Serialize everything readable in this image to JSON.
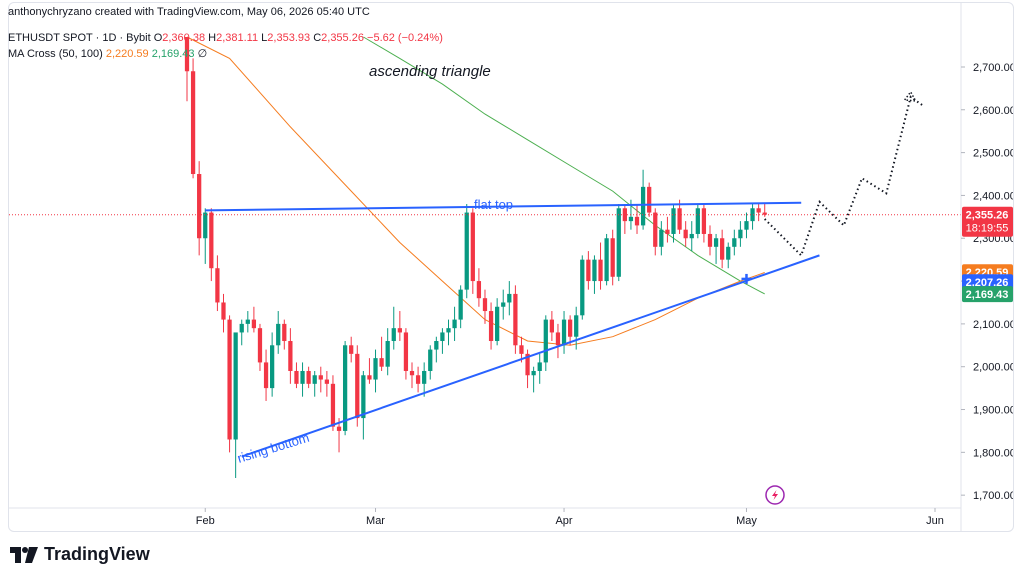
{
  "header": {
    "author_line": "anthonychryzano created with TradingView.com, May 06, 2026 05:40 UTC"
  },
  "legend": {
    "symbol": "ETHUSDT SPOT · 1D · Bybit",
    "open_label": "O",
    "open": "2,360.38",
    "high_label": "H",
    "high": "2,381.11",
    "low_label": "L",
    "low": "2,353.93",
    "close_label": "C",
    "close": "2,355.26",
    "change": "−5.62 (−0.24%)",
    "ma_label": "MA Cross (50, 100)",
    "ma50": "2,220.59",
    "ma100": "2,169.43",
    "ma_extra": "∅"
  },
  "annotations": {
    "ascending_triangle": "ascending triangle",
    "flat_top": "flat top",
    "rising_bottom": "rising bottom"
  },
  "price_badges": {
    "last_price": "2,355.26",
    "countdown": "18:19:55",
    "ma50": "2,220.59",
    "pattern_level": "2,207.26",
    "ma100": "2,169.43"
  },
  "colors": {
    "up": "#089981",
    "down": "#f23645",
    "ma50": "#f57c1f",
    "ma100": "#4caf50",
    "trendline": "#2962ff",
    "badge_blue": "#2962ff",
    "badge_orange": "#f57c1f",
    "badge_green": "#26a26a",
    "badge_red": "#f23645"
  },
  "branding": {
    "logo_text": "TradingView"
  },
  "chart_data": {
    "type": "candlestick",
    "y_axis": {
      "ticks": [
        1700,
        1800,
        1900,
        2000,
        2100,
        2200,
        2300,
        2400,
        2500,
        2600,
        2700
      ],
      "tick_labels": [
        "1,700.00",
        "1,800.00",
        "1,900.00",
        "2,000.00",
        "2,100.00",
        "2,200.00",
        "2,300.00",
        "2,400.00",
        "2,500.00",
        "2,600.00",
        "2,700.00"
      ],
      "ylim": [
        1670,
        2770
      ]
    },
    "x_axis": {
      "start": "2026-01-29",
      "end": "2026-06-01",
      "tick_labels": [
        {
          "date": "2026-02-01",
          "label": "Feb"
        },
        {
          "date": "2026-03-01",
          "label": "Mar"
        },
        {
          "date": "2026-04-01",
          "label": "Apr"
        },
        {
          "date": "2026-05-01",
          "label": "May"
        },
        {
          "date": "2026-06-01",
          "label": "Jun"
        }
      ]
    },
    "candles": [
      {
        "date": "2026-01-29",
        "o": 2770,
        "h": 2770,
        "l": 2620,
        "c": 2690
      },
      {
        "date": "2026-01-30",
        "o": 2690,
        "h": 2720,
        "l": 2440,
        "c": 2450
      },
      {
        "date": "2026-01-31",
        "o": 2450,
        "h": 2480,
        "l": 2260,
        "c": 2300
      },
      {
        "date": "2026-02-01",
        "o": 2300,
        "h": 2370,
        "l": 2240,
        "c": 2360
      },
      {
        "date": "2026-02-02",
        "o": 2360,
        "h": 2370,
        "l": 2200,
        "c": 2230
      },
      {
        "date": "2026-02-03",
        "o": 2230,
        "h": 2260,
        "l": 2130,
        "c": 2150
      },
      {
        "date": "2026-02-04",
        "o": 2150,
        "h": 2170,
        "l": 2080,
        "c": 2110
      },
      {
        "date": "2026-02-05",
        "o": 2110,
        "h": 2120,
        "l": 1800,
        "c": 1830
      },
      {
        "date": "2026-02-06",
        "o": 1830,
        "h": 2080,
        "l": 1740,
        "c": 2080
      },
      {
        "date": "2026-02-07",
        "o": 2080,
        "h": 2110,
        "l": 2050,
        "c": 2100
      },
      {
        "date": "2026-02-08",
        "o": 2100,
        "h": 2130,
        "l": 2080,
        "c": 2110
      },
      {
        "date": "2026-02-09",
        "o": 2110,
        "h": 2140,
        "l": 2080,
        "c": 2090
      },
      {
        "date": "2026-02-10",
        "o": 2090,
        "h": 2100,
        "l": 1990,
        "c": 2010
      },
      {
        "date": "2026-02-11",
        "o": 2010,
        "h": 2040,
        "l": 1920,
        "c": 1950
      },
      {
        "date": "2026-02-12",
        "o": 1950,
        "h": 2080,
        "l": 1930,
        "c": 2050
      },
      {
        "date": "2026-02-13",
        "o": 2050,
        "h": 2130,
        "l": 2030,
        "c": 2100
      },
      {
        "date": "2026-02-14",
        "o": 2100,
        "h": 2110,
        "l": 2040,
        "c": 2060
      },
      {
        "date": "2026-02-15",
        "o": 2060,
        "h": 2090,
        "l": 1960,
        "c": 1990
      },
      {
        "date": "2026-02-16",
        "o": 1990,
        "h": 2010,
        "l": 1950,
        "c": 1960
      },
      {
        "date": "2026-02-17",
        "o": 1960,
        "h": 2010,
        "l": 1930,
        "c": 1990
      },
      {
        "date": "2026-02-18",
        "o": 1990,
        "h": 2000,
        "l": 1950,
        "c": 1960
      },
      {
        "date": "2026-02-19",
        "o": 1960,
        "h": 1990,
        "l": 1930,
        "c": 1980
      },
      {
        "date": "2026-02-20",
        "o": 1980,
        "h": 2000,
        "l": 1940,
        "c": 1970
      },
      {
        "date": "2026-02-21",
        "o": 1970,
        "h": 1990,
        "l": 1930,
        "c": 1960
      },
      {
        "date": "2026-02-22",
        "o": 1960,
        "h": 1980,
        "l": 1850,
        "c": 1860
      },
      {
        "date": "2026-02-23",
        "o": 1860,
        "h": 1880,
        "l": 1800,
        "c": 1850
      },
      {
        "date": "2026-02-24",
        "o": 1850,
        "h": 2060,
        "l": 1840,
        "c": 2050
      },
      {
        "date": "2026-02-25",
        "o": 2050,
        "h": 2070,
        "l": 2010,
        "c": 2030
      },
      {
        "date": "2026-02-26",
        "o": 2030,
        "h": 2050,
        "l": 1860,
        "c": 1880
      },
      {
        "date": "2026-02-27",
        "o": 1880,
        "h": 1990,
        "l": 1830,
        "c": 1980
      },
      {
        "date": "2026-02-28",
        "o": 1980,
        "h": 2020,
        "l": 1960,
        "c": 1970
      },
      {
        "date": "2026-03-01",
        "o": 1970,
        "h": 2040,
        "l": 1940,
        "c": 2020
      },
      {
        "date": "2026-03-02",
        "o": 2020,
        "h": 2070,
        "l": 1990,
        "c": 2000
      },
      {
        "date": "2026-03-03",
        "o": 2000,
        "h": 2090,
        "l": 1980,
        "c": 2060
      },
      {
        "date": "2026-03-04",
        "o": 2060,
        "h": 2140,
        "l": 2040,
        "c": 2090
      },
      {
        "date": "2026-03-05",
        "o": 2090,
        "h": 2130,
        "l": 2060,
        "c": 2080
      },
      {
        "date": "2026-03-06",
        "o": 2080,
        "h": 2090,
        "l": 1970,
        "c": 1990
      },
      {
        "date": "2026-03-07",
        "o": 1990,
        "h": 2010,
        "l": 1950,
        "c": 1980
      },
      {
        "date": "2026-03-08",
        "o": 1980,
        "h": 2000,
        "l": 1940,
        "c": 1960
      },
      {
        "date": "2026-03-09",
        "o": 1960,
        "h": 2010,
        "l": 1930,
        "c": 1990
      },
      {
        "date": "2026-03-10",
        "o": 1990,
        "h": 2050,
        "l": 1970,
        "c": 2040
      },
      {
        "date": "2026-03-11",
        "o": 2040,
        "h": 2070,
        "l": 2010,
        "c": 2060
      },
      {
        "date": "2026-03-12",
        "o": 2060,
        "h": 2090,
        "l": 2030,
        "c": 2080
      },
      {
        "date": "2026-03-13",
        "o": 2080,
        "h": 2110,
        "l": 2050,
        "c": 2090
      },
      {
        "date": "2026-03-14",
        "o": 2090,
        "h": 2140,
        "l": 2060,
        "c": 2110
      },
      {
        "date": "2026-03-15",
        "o": 2110,
        "h": 2190,
        "l": 2090,
        "c": 2180
      },
      {
        "date": "2026-03-16",
        "o": 2180,
        "h": 2380,
        "l": 2160,
        "c": 2360
      },
      {
        "date": "2026-03-17",
        "o": 2360,
        "h": 2370,
        "l": 2170,
        "c": 2200
      },
      {
        "date": "2026-03-18",
        "o": 2200,
        "h": 2230,
        "l": 2140,
        "c": 2160
      },
      {
        "date": "2026-03-19",
        "o": 2160,
        "h": 2180,
        "l": 2100,
        "c": 2130
      },
      {
        "date": "2026-03-20",
        "o": 2130,
        "h": 2150,
        "l": 2040,
        "c": 2060
      },
      {
        "date": "2026-03-21",
        "o": 2060,
        "h": 2160,
        "l": 2050,
        "c": 2140
      },
      {
        "date": "2026-03-22",
        "o": 2140,
        "h": 2180,
        "l": 2110,
        "c": 2150
      },
      {
        "date": "2026-03-23",
        "o": 2150,
        "h": 2200,
        "l": 2120,
        "c": 2170
      },
      {
        "date": "2026-03-24",
        "o": 2170,
        "h": 2190,
        "l": 2030,
        "c": 2050
      },
      {
        "date": "2026-03-25",
        "o": 2050,
        "h": 2070,
        "l": 2010,
        "c": 2030
      },
      {
        "date": "2026-03-26",
        "o": 2030,
        "h": 2040,
        "l": 1950,
        "c": 1980
      },
      {
        "date": "2026-03-27",
        "o": 1980,
        "h": 2000,
        "l": 1940,
        "c": 1990
      },
      {
        "date": "2026-03-28",
        "o": 1990,
        "h": 2030,
        "l": 1960,
        "c": 2010
      },
      {
        "date": "2026-03-29",
        "o": 2010,
        "h": 2120,
        "l": 1990,
        "c": 2110
      },
      {
        "date": "2026-03-30",
        "o": 2110,
        "h": 2130,
        "l": 2060,
        "c": 2080
      },
      {
        "date": "2026-03-31",
        "o": 2080,
        "h": 2100,
        "l": 2020,
        "c": 2050
      },
      {
        "date": "2026-04-01",
        "o": 2050,
        "h": 2130,
        "l": 2030,
        "c": 2110
      },
      {
        "date": "2026-04-02",
        "o": 2110,
        "h": 2120,
        "l": 2050,
        "c": 2070
      },
      {
        "date": "2026-04-03",
        "o": 2070,
        "h": 2140,
        "l": 2040,
        "c": 2120
      },
      {
        "date": "2026-04-04",
        "o": 2120,
        "h": 2260,
        "l": 2110,
        "c": 2250
      },
      {
        "date": "2026-04-05",
        "o": 2250,
        "h": 2270,
        "l": 2180,
        "c": 2200
      },
      {
        "date": "2026-04-06",
        "o": 2200,
        "h": 2260,
        "l": 2170,
        "c": 2250
      },
      {
        "date": "2026-04-07",
        "o": 2250,
        "h": 2290,
        "l": 2180,
        "c": 2200
      },
      {
        "date": "2026-04-08",
        "o": 2200,
        "h": 2310,
        "l": 2190,
        "c": 2300
      },
      {
        "date": "2026-04-09",
        "o": 2300,
        "h": 2320,
        "l": 2190,
        "c": 2210
      },
      {
        "date": "2026-04-10",
        "o": 2210,
        "h": 2380,
        "l": 2200,
        "c": 2370
      },
      {
        "date": "2026-04-11",
        "o": 2370,
        "h": 2380,
        "l": 2310,
        "c": 2340
      },
      {
        "date": "2026-04-12",
        "o": 2340,
        "h": 2390,
        "l": 2320,
        "c": 2350
      },
      {
        "date": "2026-04-13",
        "o": 2350,
        "h": 2380,
        "l": 2310,
        "c": 2330
      },
      {
        "date": "2026-04-14",
        "o": 2330,
        "h": 2460,
        "l": 2320,
        "c": 2420
      },
      {
        "date": "2026-04-15",
        "o": 2420,
        "h": 2430,
        "l": 2350,
        "c": 2360
      },
      {
        "date": "2026-04-16",
        "o": 2360,
        "h": 2370,
        "l": 2260,
        "c": 2280
      },
      {
        "date": "2026-04-17",
        "o": 2280,
        "h": 2340,
        "l": 2260,
        "c": 2320
      },
      {
        "date": "2026-04-18",
        "o": 2320,
        "h": 2350,
        "l": 2290,
        "c": 2310
      },
      {
        "date": "2026-04-19",
        "o": 2310,
        "h": 2380,
        "l": 2290,
        "c": 2370
      },
      {
        "date": "2026-04-20",
        "o": 2370,
        "h": 2390,
        "l": 2310,
        "c": 2320
      },
      {
        "date": "2026-04-21",
        "o": 2320,
        "h": 2340,
        "l": 2280,
        "c": 2300
      },
      {
        "date": "2026-04-22",
        "o": 2300,
        "h": 2340,
        "l": 2270,
        "c": 2310
      },
      {
        "date": "2026-04-23",
        "o": 2310,
        "h": 2380,
        "l": 2300,
        "c": 2370
      },
      {
        "date": "2026-04-24",
        "o": 2370,
        "h": 2380,
        "l": 2290,
        "c": 2310
      },
      {
        "date": "2026-04-25",
        "o": 2310,
        "h": 2330,
        "l": 2260,
        "c": 2280
      },
      {
        "date": "2026-04-26",
        "o": 2280,
        "h": 2310,
        "l": 2240,
        "c": 2300
      },
      {
        "date": "2026-04-27",
        "o": 2300,
        "h": 2320,
        "l": 2230,
        "c": 2250
      },
      {
        "date": "2026-04-28",
        "o": 2250,
        "h": 2290,
        "l": 2230,
        "c": 2280
      },
      {
        "date": "2026-04-29",
        "o": 2280,
        "h": 2320,
        "l": 2260,
        "c": 2300
      },
      {
        "date": "2026-04-30",
        "o": 2300,
        "h": 2340,
        "l": 2280,
        "c": 2320
      },
      {
        "date": "2026-05-01",
        "o": 2320,
        "h": 2360,
        "l": 2300,
        "c": 2340
      },
      {
        "date": "2026-05-02",
        "o": 2340,
        "h": 2380,
        "l": 2320,
        "c": 2370
      },
      {
        "date": "2026-05-03",
        "o": 2370,
        "h": 2380,
        "l": 2340,
        "c": 2360
      },
      {
        "date": "2026-05-04",
        "o": 2360,
        "h": 2380,
        "l": 2350,
        "c": 2355
      }
    ],
    "ma50": [
      {
        "date": "2026-01-29",
        "v": 2770
      },
      {
        "date": "2026-02-05",
        "v": 2720
      },
      {
        "date": "2026-02-15",
        "v": 2560
      },
      {
        "date": "2026-02-25",
        "v": 2410
      },
      {
        "date": "2026-03-05",
        "v": 2290
      },
      {
        "date": "2026-03-12",
        "v": 2200
      },
      {
        "date": "2026-03-19",
        "v": 2110
      },
      {
        "date": "2026-03-26",
        "v": 2060
      },
      {
        "date": "2026-04-02",
        "v": 2050
      },
      {
        "date": "2026-04-09",
        "v": 2070
      },
      {
        "date": "2026-04-16",
        "v": 2110
      },
      {
        "date": "2026-04-23",
        "v": 2160
      },
      {
        "date": "2026-04-30",
        "v": 2200
      },
      {
        "date": "2026-05-04",
        "v": 2220
      }
    ],
    "ma100": [
      {
        "date": "2026-02-27",
        "v": 2770
      },
      {
        "date": "2026-03-05",
        "v": 2720
      },
      {
        "date": "2026-03-12",
        "v": 2660
      },
      {
        "date": "2026-03-19",
        "v": 2590
      },
      {
        "date": "2026-03-26",
        "v": 2530
      },
      {
        "date": "2026-04-02",
        "v": 2470
      },
      {
        "date": "2026-04-09",
        "v": 2410
      },
      {
        "date": "2026-04-16",
        "v": 2330
      },
      {
        "date": "2026-04-23",
        "v": 2260
      },
      {
        "date": "2026-04-30",
        "v": 2200
      },
      {
        "date": "2026-05-04",
        "v": 2170
      }
    ],
    "flat_top_line": [
      {
        "date": "2026-02-01",
        "v": 2365
      },
      {
        "date": "2026-05-10",
        "v": 2383
      }
    ],
    "rising_bottom_line": [
      {
        "date": "2026-02-07",
        "v": 1790
      },
      {
        "date": "2026-05-13",
        "v": 2260
      }
    ],
    "projection_path": [
      {
        "date": "2026-05-04",
        "v": 2345
      },
      {
        "date": "2026-05-10",
        "v": 2260
      },
      {
        "date": "2026-05-13",
        "v": 2385
      },
      {
        "date": "2026-05-17",
        "v": 2330
      },
      {
        "date": "2026-05-20",
        "v": 2440
      },
      {
        "date": "2026-05-24",
        "v": 2405
      },
      {
        "date": "2026-05-28",
        "v": 2630
      },
      {
        "date": "2026-05-30",
        "v": 2610
      }
    ],
    "cross_marker": {
      "date": "2026-05-01",
      "v": 2205
    }
  }
}
